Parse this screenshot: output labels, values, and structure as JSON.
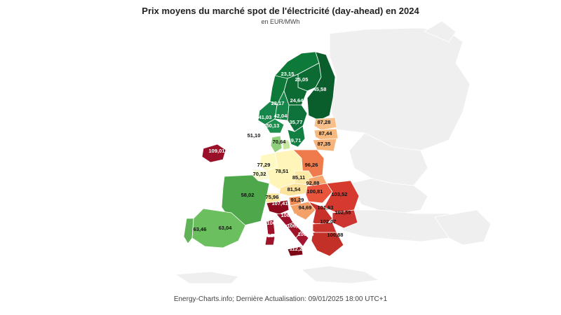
{
  "header": {
    "title": "Prix moyens du marché spot de l'électricité (day-ahead) en 2024",
    "subtitle": "en EUR/MWh"
  },
  "footer": {
    "source": "Energy-Charts.info; Dernière Actualisation: 09/01/2025 18:00 UTC+1"
  },
  "legend_colors": {
    "low": "#0b6b32",
    "mid_low": "#6cbf5e",
    "mid": "#fff7b3",
    "mid_high": "#f08050",
    "high": "#8b0a1e",
    "no_data": "#f0f0f0"
  },
  "chart_data": {
    "type": "map",
    "values": [
      {
        "zone": "SE1",
        "value": "23,15"
      },
      {
        "zone": "SE2",
        "value": "25,05"
      },
      {
        "zone": "FI",
        "value": "45,58"
      },
      {
        "zone": "NO4",
        "value": "28,17"
      },
      {
        "zone": "SE3",
        "value": "24,64"
      },
      {
        "zone": "NO5",
        "value": "41,03"
      },
      {
        "zone": "NO1",
        "value": "42,04"
      },
      {
        "zone": "NO2",
        "value": "50,13"
      },
      {
        "zone": "SE4",
        "value": "35,77"
      },
      {
        "zone": "EE",
        "value": "87,28"
      },
      {
        "zone": "LV",
        "value": "87,44"
      },
      {
        "zone": "LT",
        "value": "87,35"
      },
      {
        "zone": "DK1",
        "value": "51,10"
      },
      {
        "zone": "DK2",
        "value": "70,64"
      },
      {
        "zone": "SE4-DK",
        "value": "49,71"
      },
      {
        "zone": "IE",
        "value": "109,01"
      },
      {
        "zone": "NL",
        "value": "77,29"
      },
      {
        "zone": "BE",
        "value": "70,32"
      },
      {
        "zone": "DE",
        "value": "78,51"
      },
      {
        "zone": "PL",
        "value": "96,26"
      },
      {
        "zone": "CZ",
        "value": "85,11"
      },
      {
        "zone": "SK",
        "value": "92,88"
      },
      {
        "zone": "AT",
        "value": "81,54"
      },
      {
        "zone": "HU",
        "value": "100,81"
      },
      {
        "zone": "RO",
        "value": "103,52"
      },
      {
        "zone": "FR",
        "value": "58,02"
      },
      {
        "zone": "CH",
        "value": "75,96"
      },
      {
        "zone": "SI",
        "value": "91,29"
      },
      {
        "zone": "IT-N",
        "value": "107,41"
      },
      {
        "zone": "HR",
        "value": "94,69"
      },
      {
        "zone": "RS",
        "value": "101,63"
      },
      {
        "zone": "BG",
        "value": "102,55"
      },
      {
        "zone": "IT-CN",
        "value": "106,44"
      },
      {
        "zone": "IT-SARD",
        "value": "106,20"
      },
      {
        "zone": "IT-C",
        "value": "106,82"
      },
      {
        "zone": "MK",
        "value": "102,07"
      },
      {
        "zone": "IT-S",
        "value": "106,20"
      },
      {
        "zone": "IT-CAL",
        "value": "106,14"
      },
      {
        "zone": "GR",
        "value": "100,88"
      },
      {
        "zone": "IT-SIC",
        "value": "112,21"
      },
      {
        "zone": "PT",
        "value": "63,46"
      },
      {
        "zone": "ES",
        "value": "63,04"
      }
    ]
  }
}
